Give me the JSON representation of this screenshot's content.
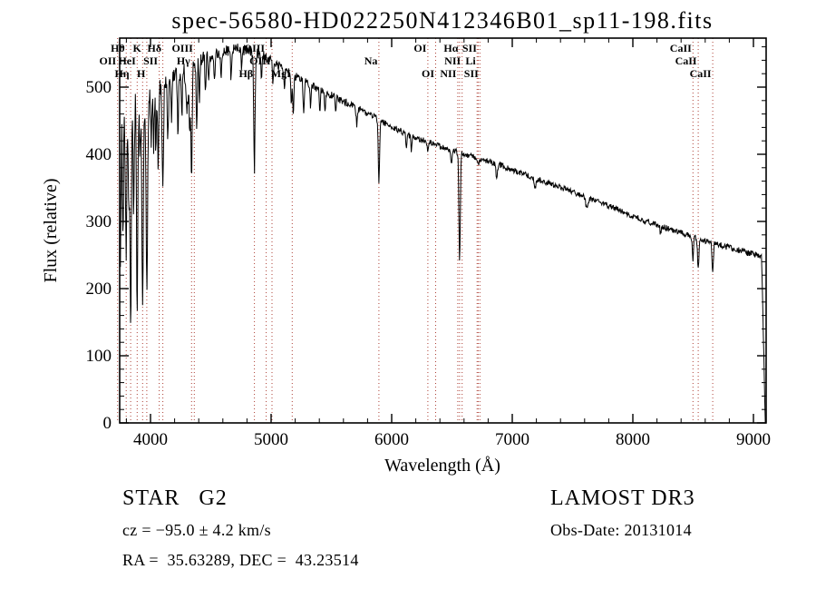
{
  "title": "spec-56580-HD022250N412346B01_sp11-198.fits",
  "footer": {
    "object_type": "STAR   G2",
    "survey": "LAMOST DR3",
    "cz": "cz = −95.0 ± 4.2 km/s",
    "obs_date": "Obs-Date: 20131014",
    "coordinates": "RA =  35.63289, DEC =  43.23514"
  },
  "colors": {
    "spectrum": "#000000",
    "marker_line": "#ad3f35",
    "frame": "#000000",
    "text": "#000000",
    "background": "#ffffff"
  },
  "chart_data": {
    "type": "line",
    "title": "spec-56580-HD022250N412346B01_sp11-198.fits",
    "xlabel": "Wavelength (Å)",
    "ylabel": "Flux (relative)",
    "xlim": [
      3744,
      9105
    ],
    "ylim": [
      0,
      573
    ],
    "x_ticks": [
      4000,
      5000,
      6000,
      7000,
      8000,
      9000
    ],
    "y_ticks": [
      0,
      100,
      200,
      300,
      400,
      500
    ],
    "x_minor_step": 200,
    "y_minor_step": 20,
    "grid": false,
    "legend": false,
    "sample_step_angstrom": 4,
    "continuum_points": [
      [
        3744,
        445
      ],
      [
        3800,
        462
      ],
      [
        3850,
        470
      ],
      [
        3900,
        478
      ],
      [
        3950,
        484
      ],
      [
        4000,
        490
      ],
      [
        4050,
        495
      ],
      [
        4100,
        500
      ],
      [
        4150,
        507
      ],
      [
        4200,
        515
      ],
      [
        4250,
        521
      ],
      [
        4300,
        528
      ],
      [
        4350,
        534
      ],
      [
        4400,
        540
      ],
      [
        4450,
        544
      ],
      [
        4500,
        548
      ],
      [
        4550,
        551
      ],
      [
        4600,
        553
      ],
      [
        4650,
        555
      ],
      [
        4700,
        557
      ],
      [
        4750,
        556
      ],
      [
        4800,
        554
      ],
      [
        4850,
        551
      ],
      [
        4900,
        550
      ],
      [
        4950,
        545
      ],
      [
        5000,
        540
      ],
      [
        5050,
        534
      ],
      [
        5100,
        528
      ],
      [
        5150,
        522
      ],
      [
        5200,
        516
      ],
      [
        5250,
        511
      ],
      [
        5300,
        506
      ],
      [
        5350,
        501
      ],
      [
        5400,
        497
      ],
      [
        5450,
        492
      ],
      [
        5500,
        488
      ],
      [
        5550,
        483
      ],
      [
        5600,
        479
      ],
      [
        5650,
        474
      ],
      [
        5700,
        470
      ],
      [
        5750,
        466
      ],
      [
        5800,
        461
      ],
      [
        5850,
        456
      ],
      [
        5900,
        451
      ],
      [
        5950,
        446
      ],
      [
        6000,
        441
      ],
      [
        6100,
        432
      ],
      [
        6200,
        424
      ],
      [
        6300,
        418
      ],
      [
        6400,
        412
      ],
      [
        6500,
        406
      ],
      [
        6600,
        400
      ],
      [
        6700,
        395
      ],
      [
        6800,
        390
      ],
      [
        6900,
        384
      ],
      [
        7000,
        377
      ],
      [
        7100,
        370
      ],
      [
        7200,
        364
      ],
      [
        7300,
        357
      ],
      [
        7400,
        351
      ],
      [
        7500,
        344
      ],
      [
        7600,
        337
      ],
      [
        7700,
        330
      ],
      [
        7800,
        323
      ],
      [
        7900,
        316
      ],
      [
        8000,
        308
      ],
      [
        8100,
        301
      ],
      [
        8200,
        295
      ],
      [
        8300,
        289
      ],
      [
        8400,
        283
      ],
      [
        8500,
        277
      ],
      [
        8600,
        271
      ],
      [
        8700,
        266
      ],
      [
        8800,
        261
      ],
      [
        8900,
        256
      ],
      [
        9000,
        251
      ],
      [
        9105,
        247
      ]
    ],
    "absorption_lines_schema": [
      "wavelength_angstrom",
      "depth_flux",
      "sigma_angstrom"
    ],
    "absorption_lines": [
      [
        3705,
        150,
        4
      ],
      [
        3712,
        130,
        4
      ],
      [
        3727,
        100,
        4
      ],
      [
        3736,
        150,
        4
      ],
      [
        3750,
        200,
        4.5
      ],
      [
        3771,
        195,
        4.5
      ],
      [
        3798,
        235,
        5
      ],
      [
        3820,
        160,
        4.5
      ],
      [
        3835,
        330,
        5
      ],
      [
        3860,
        175,
        4.5
      ],
      [
        3889,
        300,
        5.5
      ],
      [
        3912,
        90,
        4
      ],
      [
        3934,
        300,
        6.5
      ],
      [
        3969,
        290,
        6.5
      ],
      [
        4005,
        65,
        4
      ],
      [
        4026,
        85,
        4.5
      ],
      [
        4045,
        95,
        4
      ],
      [
        4064,
        115,
        4.5
      ],
      [
        4102,
        155,
        5.5
      ],
      [
        4144,
        85,
        5
      ],
      [
        4175,
        60,
        4
      ],
      [
        4227,
        95,
        4.5
      ],
      [
        4260,
        65,
        4
      ],
      [
        4305,
        60,
        11
      ],
      [
        4325,
        85,
        4
      ],
      [
        4340,
        180,
        5
      ],
      [
        4383,
        95,
        4.5
      ],
      [
        4405,
        60,
        4
      ],
      [
        4455,
        55,
        4
      ],
      [
        4481,
        45,
        4
      ],
      [
        4530,
        45,
        5
      ],
      [
        4585,
        40,
        4
      ],
      [
        4668,
        45,
        4
      ],
      [
        4755,
        35,
        4
      ],
      [
        4861,
        175,
        5.5
      ],
      [
        4920,
        45,
        4
      ],
      [
        5015,
        35,
        4
      ],
      [
        5110,
        35,
        4
      ],
      [
        5167,
        50,
        4
      ],
      [
        5183,
        55,
        5
      ],
      [
        5270,
        45,
        5
      ],
      [
        5328,
        35,
        4
      ],
      [
        5404,
        30,
        4
      ],
      [
        5446,
        30,
        4
      ],
      [
        5535,
        25,
        4
      ],
      [
        5710,
        25,
        5
      ],
      [
        5894,
        95,
        5.5
      ],
      [
        6122,
        22,
        4
      ],
      [
        6162,
        20,
        4
      ],
      [
        6300,
        14,
        4
      ],
      [
        6495,
        20,
        5
      ],
      [
        6563,
        165,
        5.5
      ],
      [
        6717,
        12,
        4
      ],
      [
        6870,
        18,
        7
      ],
      [
        7190,
        14,
        8
      ],
      [
        7620,
        18,
        10
      ],
      [
        8230,
        12,
        5
      ],
      [
        8498,
        38,
        5
      ],
      [
        8542,
        46,
        5.5
      ],
      [
        8662,
        44,
        5.5
      ]
    ],
    "noise_profile": [
      [
        3744,
        32
      ],
      [
        3900,
        24
      ],
      [
        4000,
        18
      ],
      [
        4200,
        13
      ],
      [
        4500,
        9
      ],
      [
        5000,
        7
      ],
      [
        5500,
        5.5
      ],
      [
        6500,
        4.5
      ],
      [
        7500,
        4
      ],
      [
        8800,
        4.5
      ],
      [
        9105,
        5
      ]
    ],
    "red_cutoff": {
      "start": 9068,
      "end": 9098
    },
    "spectral_line_markers": [
      {
        "wavelength": 3727,
        "label": "OII",
        "row": 2
      },
      {
        "wavelength": 3798,
        "label": "Hθ",
        "row": 1
      },
      {
        "wavelength": 3835,
        "label": "Hη",
        "row": 3
      },
      {
        "wavelength": 3889,
        "label": "HeI",
        "row": 2
      },
      {
        "wavelength": 3934,
        "label": "K",
        "row": 1
      },
      {
        "wavelength": 3969,
        "label": "H",
        "row": 3
      },
      {
        "wavelength": 4072,
        "label": "SII",
        "row": 2
      },
      {
        "wavelength": 4102,
        "label": "Hδ",
        "row": 1
      },
      {
        "wavelength": 4340,
        "label": "Hγ",
        "row": 2
      },
      {
        "wavelength": 4363,
        "label": "OIII",
        "row": 1
      },
      {
        "wavelength": 4861,
        "label": "Hβ",
        "row": 3
      },
      {
        "wavelength": 4959,
        "label": "OIII",
        "row": 1
      },
      {
        "wavelength": 5007,
        "label": "OIII",
        "row": 2
      },
      {
        "wavelength": 5175,
        "label": "MgI",
        "row": 3
      },
      {
        "wavelength": 5894,
        "label": "Na",
        "row": 2
      },
      {
        "wavelength": 6300,
        "label": "OI",
        "row": 1
      },
      {
        "wavelength": 6364,
        "label": "OI",
        "row": 3
      },
      {
        "wavelength": 6548,
        "label": "NII",
        "row": 3
      },
      {
        "wavelength": 6563,
        "label": "Hα",
        "row": 1
      },
      {
        "wavelength": 6584,
        "label": "NII",
        "row": 2
      },
      {
        "wavelength": 6708,
        "label": "Li",
        "row": 2
      },
      {
        "wavelength": 6717,
        "label": "SII",
        "row": 1
      },
      {
        "wavelength": 6731,
        "label": "SII",
        "row": 3
      },
      {
        "wavelength": 8498,
        "label": "CaII",
        "row": 1
      },
      {
        "wavelength": 8542,
        "label": "CaII",
        "row": 2
      },
      {
        "wavelength": 8662,
        "label": "CaII",
        "row": 3
      }
    ]
  }
}
